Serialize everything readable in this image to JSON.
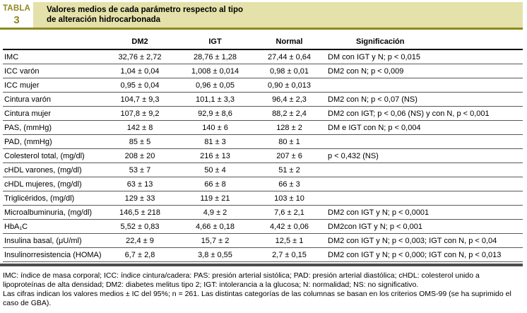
{
  "header": {
    "badge_line1": "TABLA",
    "badge_line2": "3",
    "title_line1": "Valores medios de cada parámetro respecto al tipo",
    "title_line2": "de alteración hidrocarbonada"
  },
  "colors": {
    "accent_olive": "#8e891e",
    "title_bar_bg": "#e5e1aa",
    "bottom_bar": "#4d4d4d"
  },
  "table": {
    "columns": [
      "",
      "DM2",
      "IGT",
      "Normal",
      "Significación"
    ],
    "rows": [
      {
        "param": "IMC",
        "dm2": "32,76 ± 2,72",
        "igt": "28,76 ± 1,28",
        "normal": "27,44 ± 0,64",
        "sig": "DM con IGT y N; p < 0,015"
      },
      {
        "param": "ICC varón",
        "dm2": "1,04 ± 0,04",
        "igt": "1,008 ± 0,014",
        "normal": "0,98 ± 0,01",
        "sig": "DM2 con N; p < 0,009"
      },
      {
        "param": "ICC mujer",
        "dm2": "0,95 ± 0,04",
        "igt": "0,96 ± 0,05",
        "normal": "0,90 ± 0,013",
        "sig": ""
      },
      {
        "param": "Cintura varón",
        "dm2": "104,7 ± 9,3",
        "igt": "101,1 ± 3,3",
        "normal": "96,4 ± 2,3",
        "sig": "DM2 con N; p < 0,07 (NS)"
      },
      {
        "param": "Cintura mujer",
        "dm2": "107,8 ± 9,2",
        "igt": "92,9 ± 8,6",
        "normal": "88,2 ± 2,4",
        "sig": "DM2 con IGT; p < 0,06 (NS) y con N, p < 0,001"
      },
      {
        "param": "PAS, (mmHg)",
        "dm2": "142 ± 8",
        "igt": "140 ± 6",
        "normal": "128 ± 2",
        "sig": "DM e IGT con N; p < 0,004"
      },
      {
        "param": "PAD, (mmHg)",
        "dm2": "85 ± 5",
        "igt": "81 ± 3",
        "normal": "80 ± 1",
        "sig": ""
      },
      {
        "param": "Colesterol total, (mg/dl)",
        "dm2": "208 ± 20",
        "igt": "216 ± 13",
        "normal": "207 ± 6",
        "sig": "p < 0,432 (NS)"
      },
      {
        "param": "cHDL varones, (mg/dl)",
        "dm2": "53 ± 7",
        "igt": "50 ± 4",
        "normal": "51 ± 2",
        "sig": ""
      },
      {
        "param": "cHDL mujeres, (mg/dl)",
        "dm2": "63 ± 13",
        "igt": "66 ± 8",
        "normal": "66 ± 3",
        "sig": ""
      },
      {
        "param": "Triglicéridos, (mg/dl)",
        "dm2": "129 ± 33",
        "igt": "119 ± 21",
        "normal": "103 ± 10",
        "sig": ""
      },
      {
        "param": "Microalbuminuria, (mg/dl)",
        "dm2": "146,5 ± 218",
        "igt": "4,9 ± 2",
        "normal": "7,6 ± 2,1",
        "sig": "DM2 con IGT y N; p < 0,0001"
      },
      {
        "param": "HbA₁C",
        "dm2": "5,52 ± 0,83",
        "igt": "4,66 ± 0,18",
        "normal": "4,42 ± 0,06",
        "sig": "DM2con IGT y N; p < 0,001"
      },
      {
        "param": "Insulina basal, (μU/ml)",
        "dm2": "22,4 ± 9",
        "igt": "15,7 ± 2",
        "normal": "12,5 ± 1",
        "sig": "DM2 con IGT y N; p < 0,003; IGT con N, p < 0,04"
      },
      {
        "param": "Insulinorresistencia (HOMA)",
        "dm2": "6,7 ± 2,8",
        "igt": "3,8 ± 0,55",
        "normal": "2,7 ± 0,15",
        "sig": "DM2 con IGT y N; p < 0,000; IGT con N, p < 0,013"
      }
    ]
  },
  "footnotes": {
    "abbreviations": "IMC: índice de masa corporal; ICC: índice cintura/cadera: PAS: presión arterial sistólica; PAD: presión arterial diastólica; cHDL: colesterol unido a lipoproteínas de alta densidad; DM2: diabetes melitus tipo 2; IGT: intolerancia a la glucosa; N: normalidad; NS: no significativo.",
    "note": "Las cifras indican los valores medios ± IC del 95%; n = 261. Las distintas categorías de las columnas se basan en los criterios OMS-99 (se ha suprimido el caso de GBA)."
  }
}
